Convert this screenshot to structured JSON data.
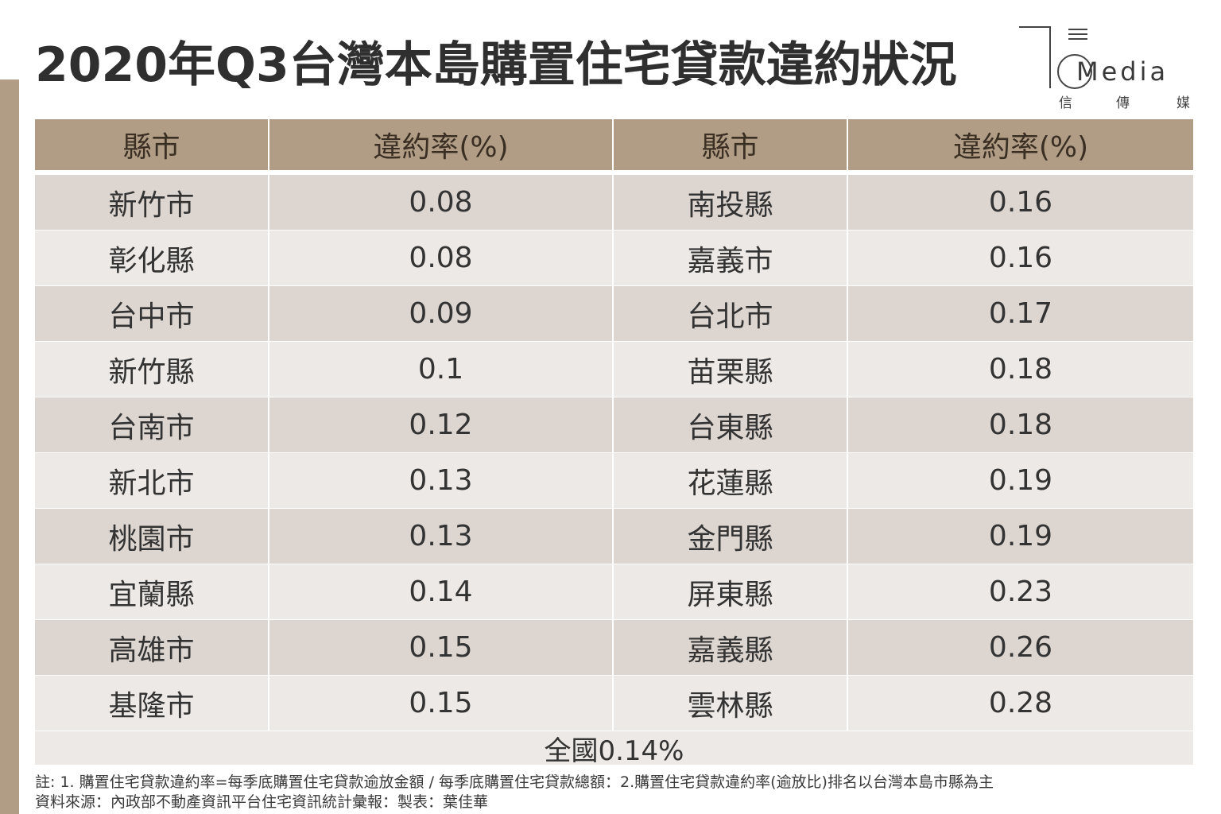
{
  "title": "2020年Q3台灣本島購置住宅貸款違約狀況",
  "logo": {
    "brand": "Media",
    "sub": [
      "信",
      "傳",
      "媒"
    ]
  },
  "colors": {
    "accent": "#b19d85",
    "row_dark": "#ddd5cf",
    "row_light": "#ede9e6"
  },
  "chart_data": {
    "type": "table",
    "columns": [
      "縣市",
      "違約率(%)",
      "縣市",
      "違約率(%)"
    ],
    "rows": [
      [
        "新竹市",
        "0.08",
        "南投縣",
        "0.16"
      ],
      [
        "彰化縣",
        "0.08",
        "嘉義市",
        "0.16"
      ],
      [
        "台中市",
        "0.09",
        "台北市",
        "0.17"
      ],
      [
        "新竹縣",
        "0.1",
        "苗栗縣",
        "0.18"
      ],
      [
        "台南市",
        "0.12",
        "台東縣",
        "0.18"
      ],
      [
        "新北市",
        "0.13",
        "花蓮縣",
        "0.19"
      ],
      [
        "桃園市",
        "0.13",
        "金門縣",
        "0.19"
      ],
      [
        "宜蘭縣",
        "0.14",
        "屏東縣",
        "0.23"
      ],
      [
        "高雄市",
        "0.15",
        "嘉義縣",
        "0.26"
      ],
      [
        "基隆市",
        "0.15",
        "雲林縣",
        "0.28"
      ]
    ],
    "total": "全國0.14%"
  },
  "notes": [
    "註: 1. 購置住宅貸款違約率=每季底購置住宅貸款逾放金額 / 每季底購置住宅貸款總額：2.購置住宅貸款違約率(逾放比)排名以台灣本島市縣為主",
    "資料來源：內政部不動產資訊平台住宅資訊統計彙報：製表：葉佳華"
  ]
}
